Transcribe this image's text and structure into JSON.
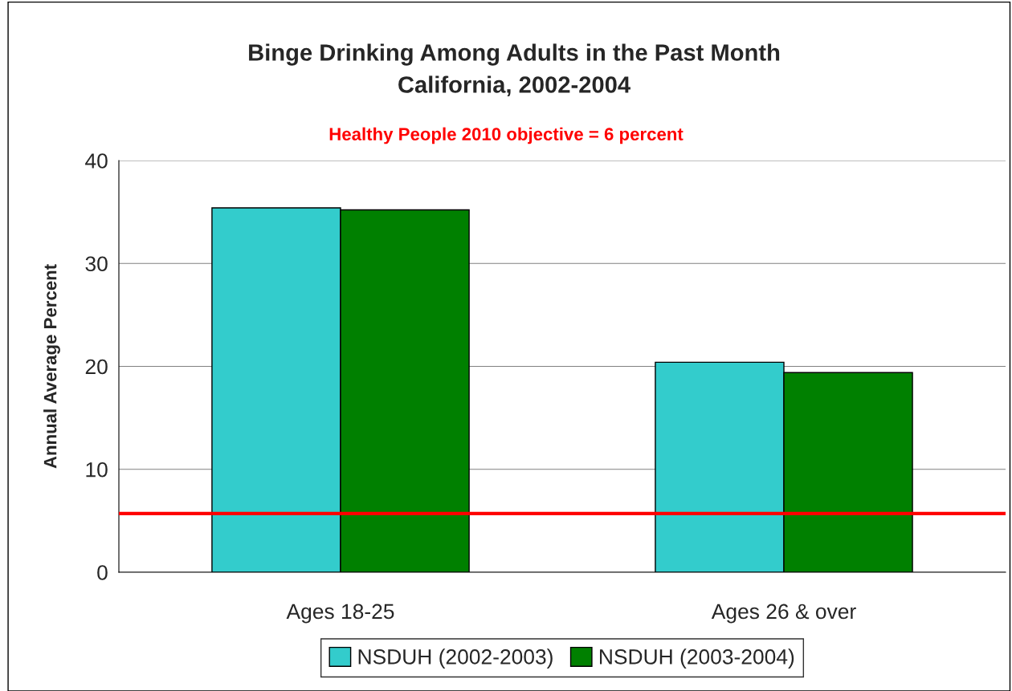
{
  "chart_data": {
    "type": "bar",
    "title": "Binge Drinking Among Adults in the Past Month\nCalifornia, 2002-2004",
    "subtitle": "Healthy People 2010 objective = 6 percent",
    "ylabel": "Annual Average Percent",
    "categories": [
      "Ages 18-25",
      "Ages 26 & over"
    ],
    "series": [
      {
        "name": "NSDUH (2002-2003)",
        "color": "#33cccc",
        "values": [
          35.4,
          20.4
        ]
      },
      {
        "name": "NSDUH (2003-2004)",
        "color": "#008000",
        "values": [
          35.2,
          19.4
        ]
      }
    ],
    "ylim": [
      0,
      40
    ],
    "yticks": [
      0,
      10,
      20,
      30,
      40
    ],
    "grid": "y",
    "legend": "bottom",
    "ref_lines": [
      {
        "axis": "y",
        "value": 5.7,
        "color": "#ff0000"
      }
    ]
  }
}
